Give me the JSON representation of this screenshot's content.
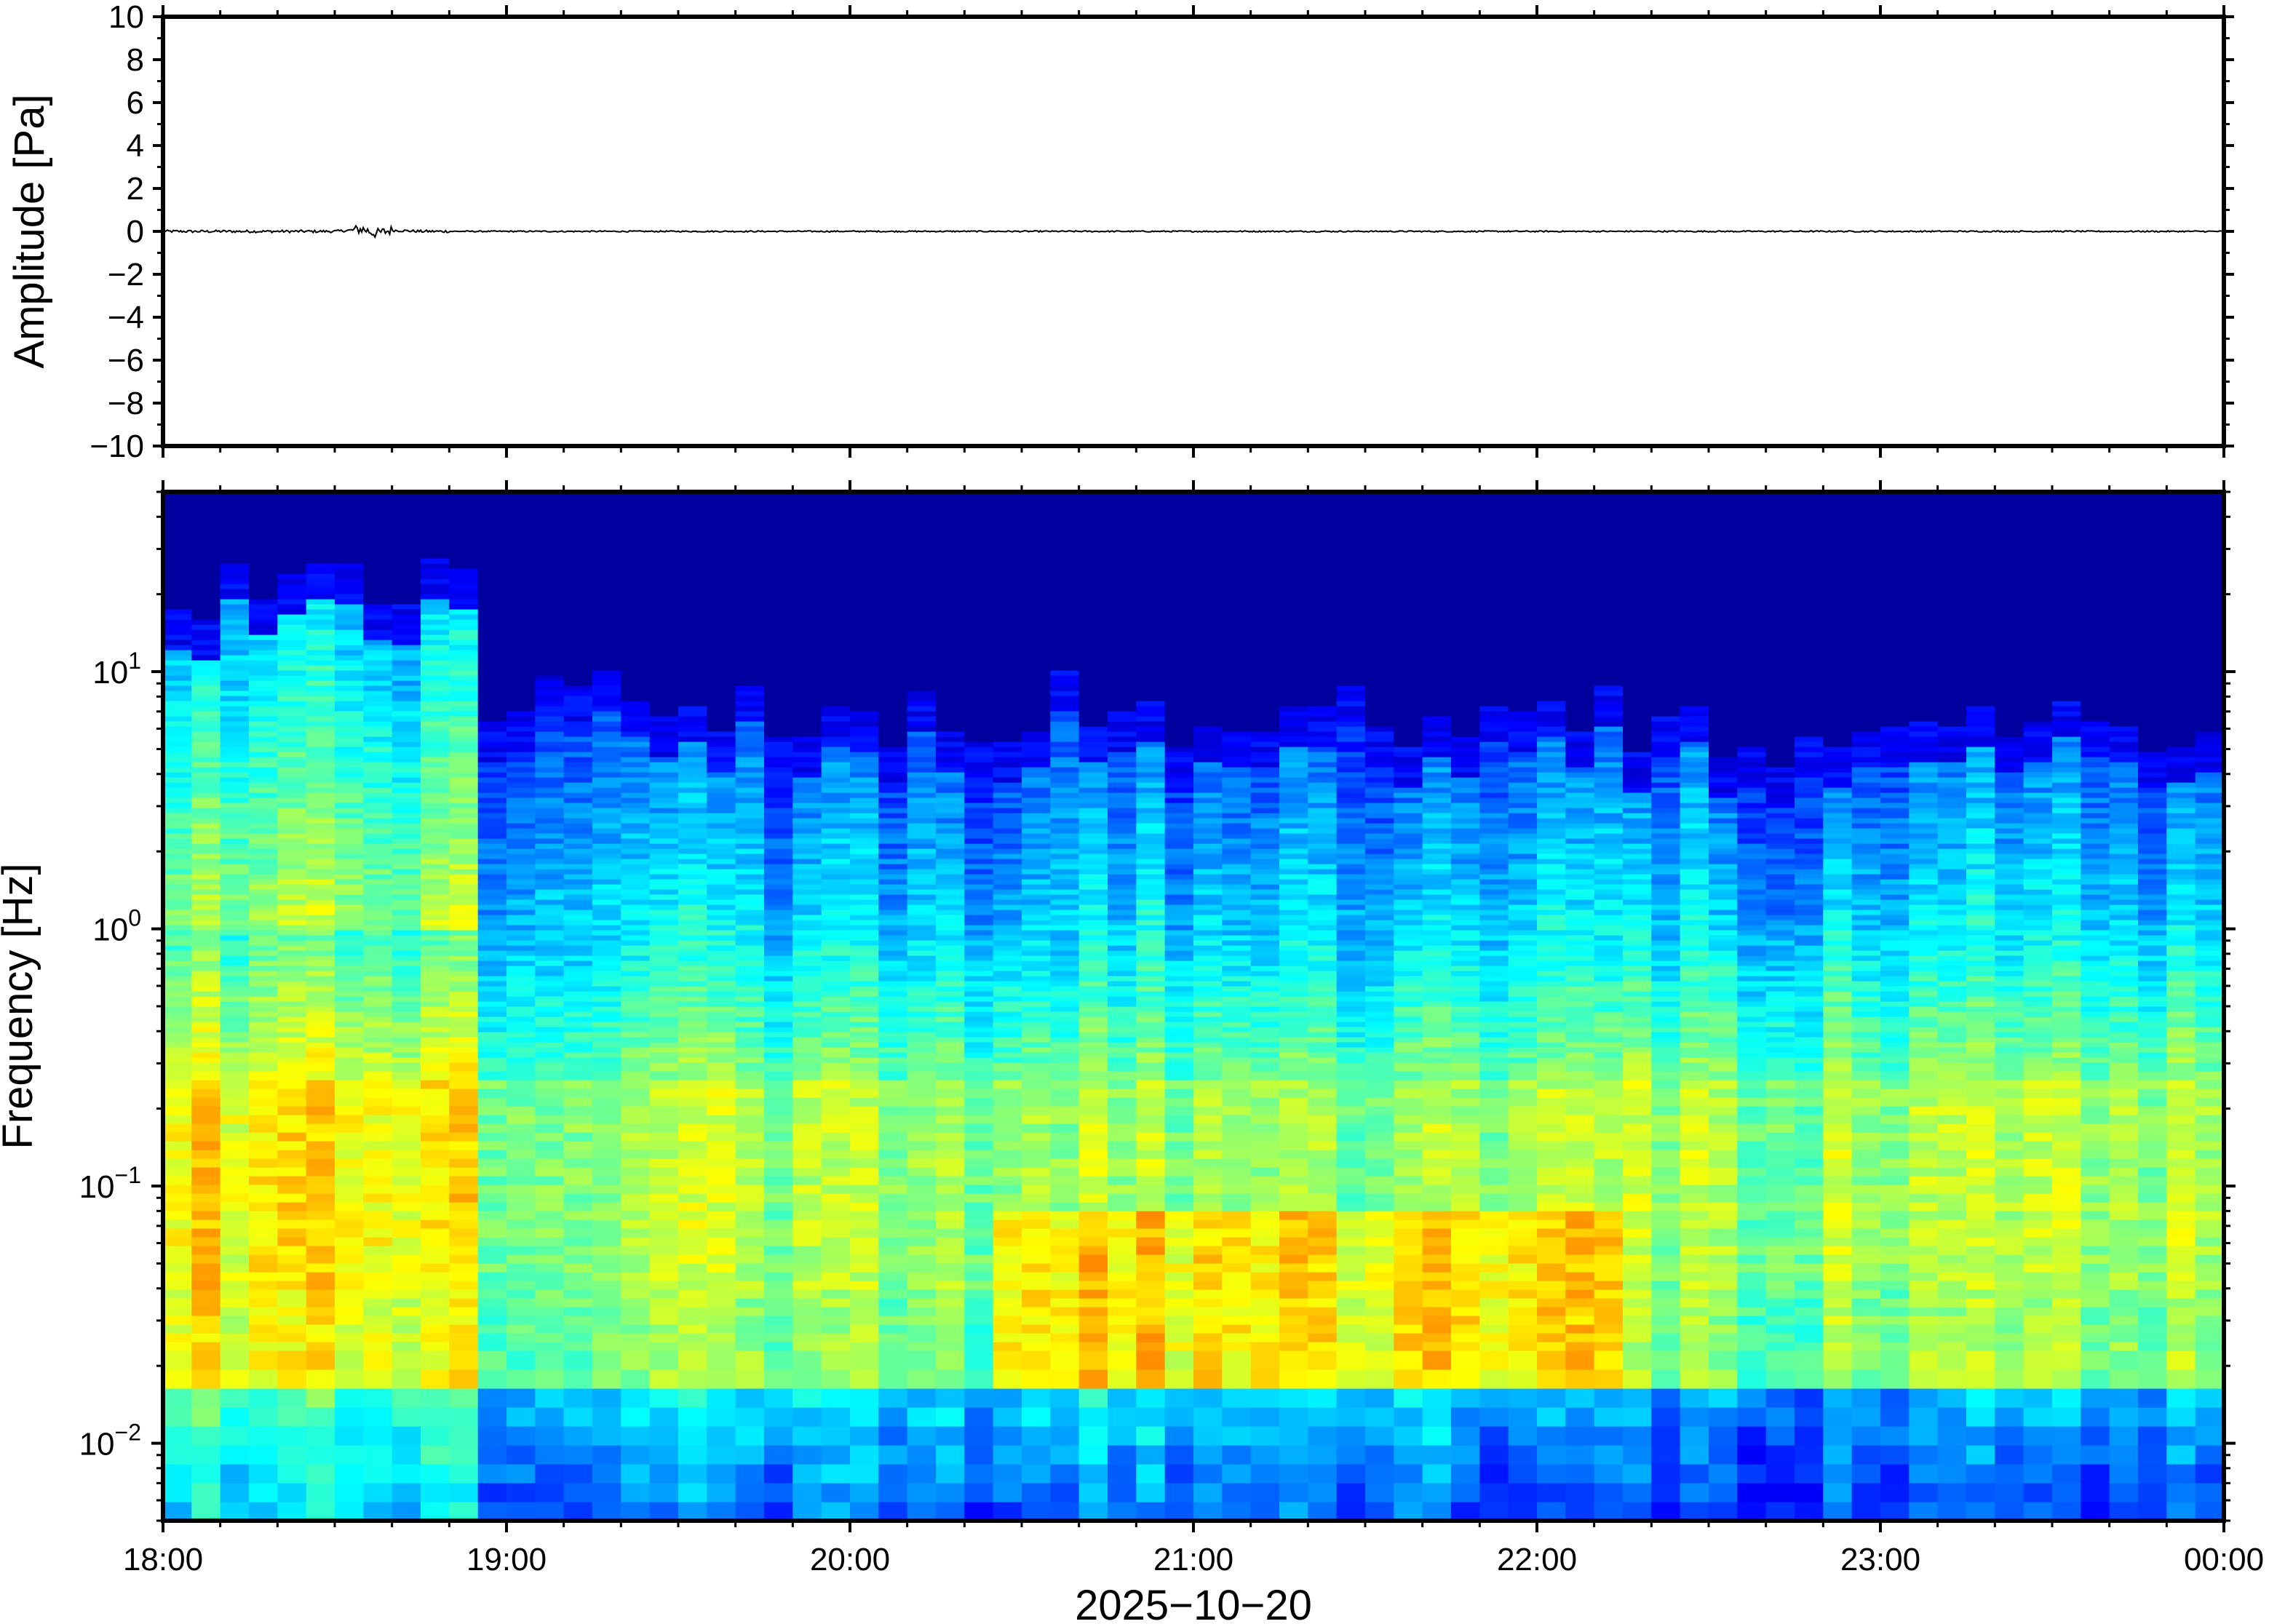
{
  "chart_data": [
    {
      "type": "line",
      "panel": "waveform",
      "ylabel": "Amplitude [Pa]",
      "ylim": [
        -10,
        10
      ],
      "y_ticks": [
        "10",
        "8",
        "6",
        "4",
        "2",
        "0",
        "−2",
        "−4",
        "−6",
        "−8",
        "−10"
      ],
      "y_tick_values": [
        10,
        8,
        6,
        4,
        2,
        0,
        -2,
        -4,
        -6,
        -8,
        -10
      ],
      "x_range": [
        "18:00",
        "00:00"
      ],
      "series": [
        {
          "x": [
            "18:00",
            "18:30",
            "18:35",
            "18:37",
            "18:40",
            "18:45",
            "19:00",
            "20:00",
            "21:00",
            "22:00",
            "23:00",
            "00:00"
          ],
          "y": [
            0,
            0,
            0.1,
            -0.1,
            0.05,
            0,
            0,
            0,
            0,
            0,
            0,
            0
          ]
        }
      ],
      "grid": false
    },
    {
      "type": "heatmap",
      "panel": "spectrogram",
      "ylabel": "Frequency [Hz]",
      "yscale": "log",
      "ylim": [
        0.005,
        50
      ],
      "y_ticks": [
        {
          "base": "10",
          "exp": "1",
          "value": 10
        },
        {
          "base": "10",
          "exp": "0",
          "value": 1
        },
        {
          "base": "10",
          "exp": "−1",
          "value": 0.1
        },
        {
          "base": "10",
          "exp": "−2",
          "value": 0.01
        }
      ],
      "xlabel": "2025−10−20",
      "x_ticks": [
        "18:00",
        "19:00",
        "20:00",
        "21:00",
        "22:00",
        "23:00",
        "00:00"
      ],
      "colormap": "jet",
      "colors": {
        "background": "#08087a",
        "low": "#0a0a85",
        "mid": "#29b6f6",
        "high": "#f9e79f"
      },
      "grid": false
    }
  ]
}
